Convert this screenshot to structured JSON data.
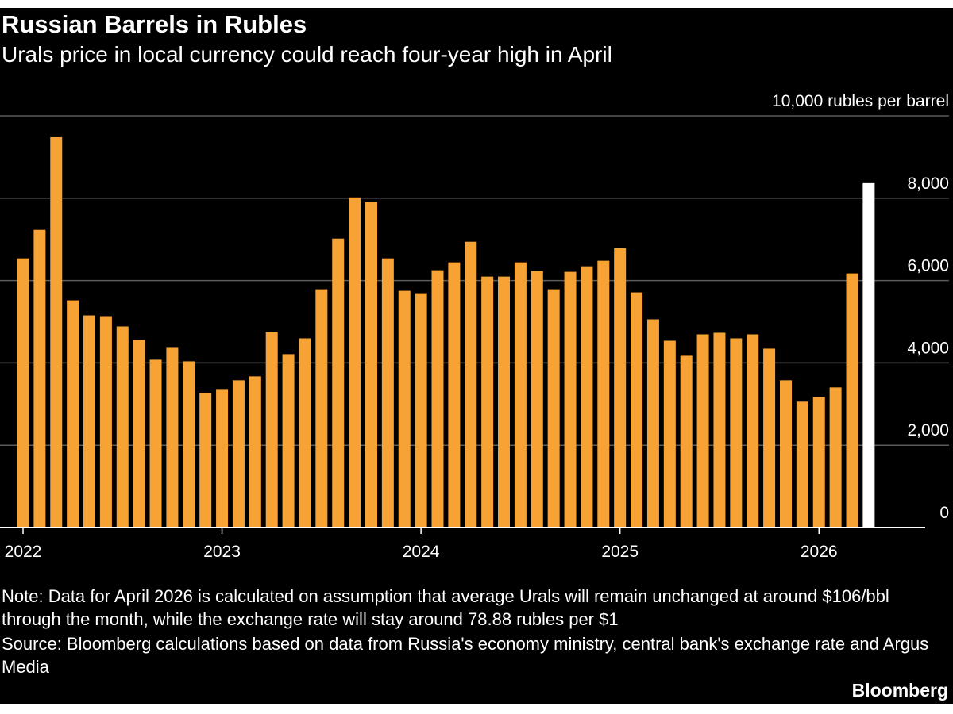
{
  "chart_data": {
    "type": "bar",
    "title": "Russian Barrels in Rubles",
    "subtitle": "Urals price in local currency could reach four-year high in April",
    "categories": [
      "2022",
      null,
      null,
      null,
      null,
      null,
      null,
      null,
      null,
      null,
      null,
      null,
      "2023",
      null,
      null,
      null,
      null,
      null,
      null,
      null,
      null,
      null,
      null,
      null,
      "2024",
      null,
      null,
      null,
      null,
      null,
      null,
      null,
      null,
      null,
      null,
      null,
      "2025",
      null,
      null,
      null,
      null,
      null,
      null,
      null,
      null,
      null,
      null,
      null,
      "2026",
      null,
      null,
      null
    ],
    "values": [
      6538,
      7231,
      9481,
      5519,
      5154,
      5135,
      4885,
      4558,
      4077,
      4365,
      4038,
      3269,
      3365,
      3577,
      3673,
      4750,
      4212,
      4596,
      5788,
      7019,
      8019,
      7904,
      6538,
      5750,
      5692,
      6250,
      6442,
      6942,
      6096,
      6096,
      6442,
      6231,
      5788,
      6212,
      6346,
      6481,
      6788,
      5712,
      5058,
      4538,
      4173,
      4692,
      4731,
      4596,
      4692,
      4346,
      3577,
      3058,
      3173,
      3404,
      6173,
      8365
    ],
    "colors": [
      "#f7a234",
      "#f7a234",
      "#f7a234",
      "#f7a234",
      "#f7a234",
      "#f7a234",
      "#f7a234",
      "#f7a234",
      "#f7a234",
      "#f7a234",
      "#f7a234",
      "#f7a234",
      "#f7a234",
      "#f7a234",
      "#f7a234",
      "#f7a234",
      "#f7a234",
      "#f7a234",
      "#f7a234",
      "#f7a234",
      "#f7a234",
      "#f7a234",
      "#f7a234",
      "#f7a234",
      "#f7a234",
      "#f7a234",
      "#f7a234",
      "#f7a234",
      "#f7a234",
      "#f7a234",
      "#f7a234",
      "#f7a234",
      "#f7a234",
      "#f7a234",
      "#f7a234",
      "#f7a234",
      "#f7a234",
      "#f7a234",
      "#f7a234",
      "#f7a234",
      "#f7a234",
      "#f7a234",
      "#f7a234",
      "#f7a234",
      "#f7a234",
      "#f7a234",
      "#f7a234",
      "#f7a234",
      "#f7a234",
      "#f7a234",
      "#f7a234",
      "#ffffff"
    ],
    "ylim": [
      0,
      10000
    ],
    "yticks": [
      0,
      {
        "value": 2000,
        "label": "2,000"
      },
      {
        "value": 4000,
        "label": "4,000"
      },
      {
        "value": 6000,
        "label": "6,000"
      },
      {
        "value": 8000,
        "label": "8,000"
      },
      {
        "value": 10000,
        "label": "10,000 rubles per barrel"
      }
    ],
    "grid": true,
    "note": "Note: Data for April 2026 is calculated on assumption that average Urals will remain unchanged at around $106/bbl through the month, while the exchange rate will stay around 78.88 rubles per $1",
    "source": "Source: Bloomberg calculations based on data from Russia's economy ministry, central bank's exchange rate and Argus Media",
    "brand": "Bloomberg"
  }
}
